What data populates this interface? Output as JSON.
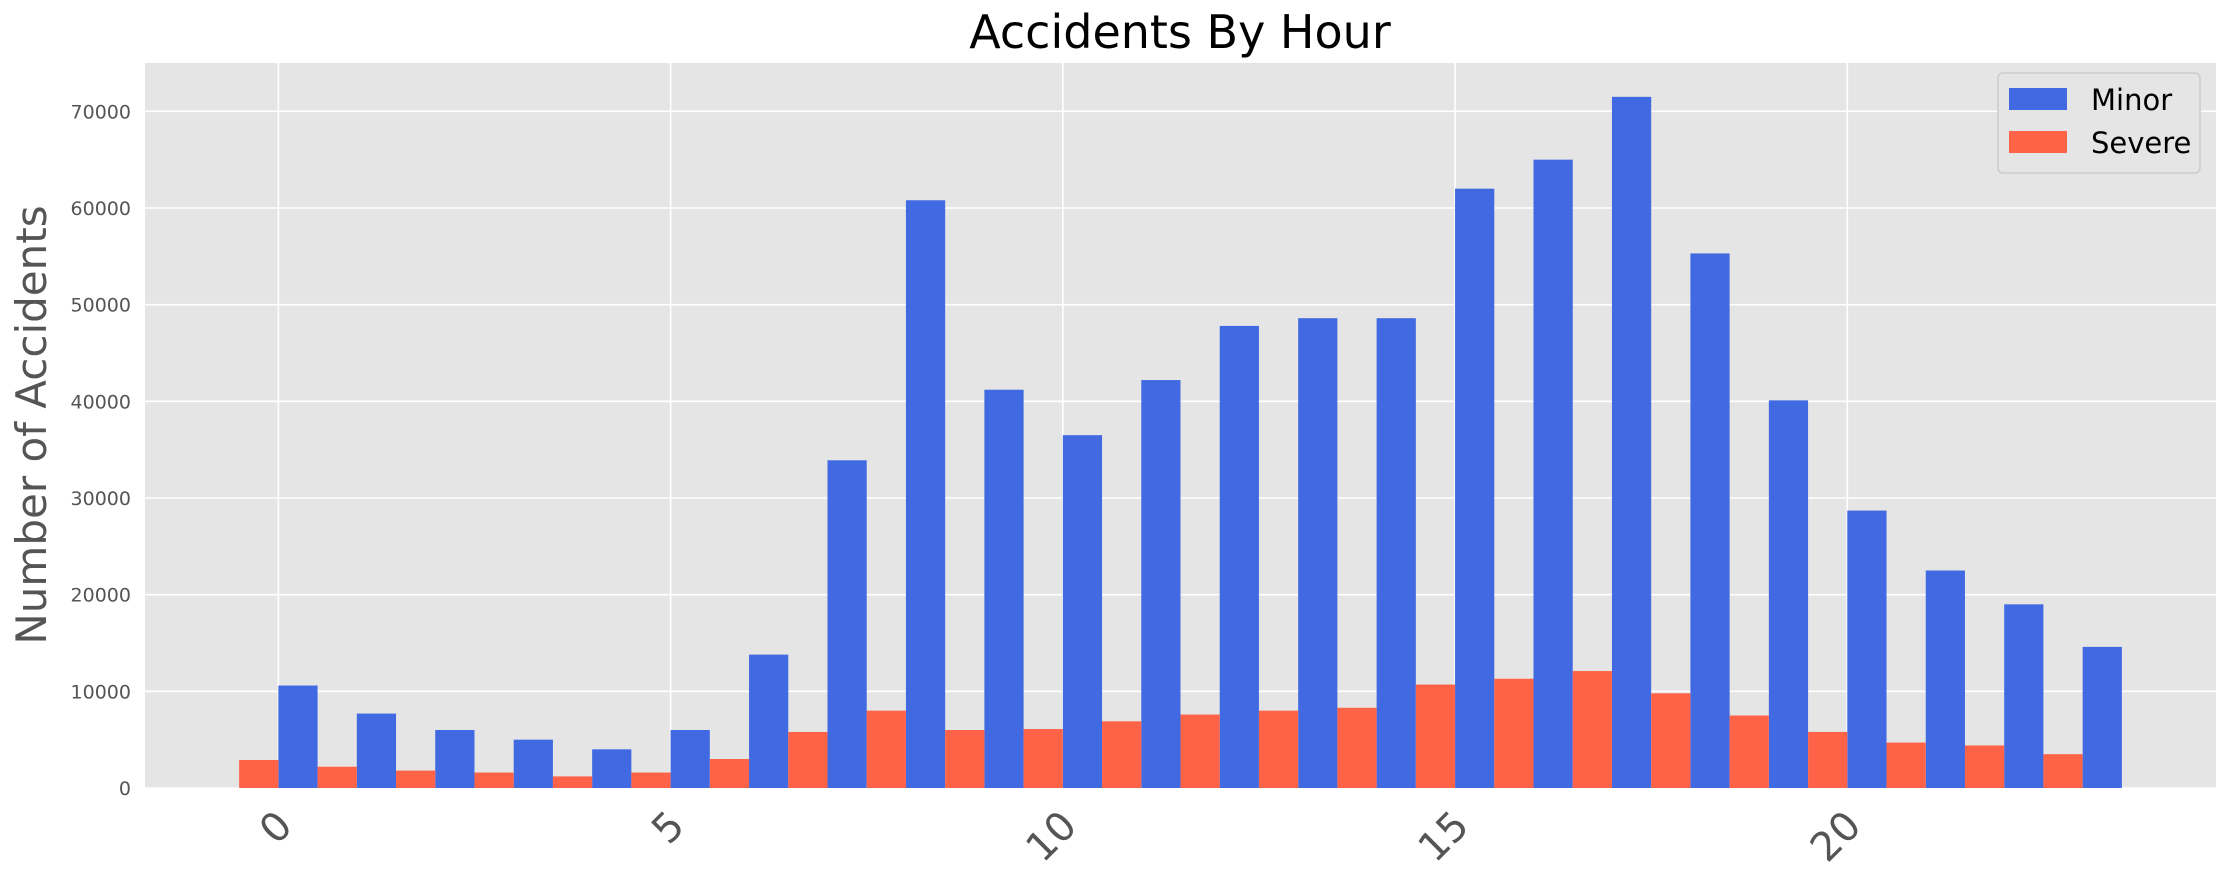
{
  "chart_data": {
    "type": "bar",
    "title": "Accidents By Hour",
    "xlabel": "",
    "ylabel": "Number of Accidents",
    "categories": [
      0,
      1,
      2,
      3,
      4,
      5,
      6,
      7,
      8,
      9,
      10,
      11,
      12,
      13,
      14,
      15,
      16,
      17,
      18,
      19,
      20,
      21,
      22,
      23
    ],
    "x_ticks": [
      0,
      5,
      10,
      15,
      20
    ],
    "y_ticks": [
      0,
      10000,
      20000,
      30000,
      40000,
      50000,
      60000,
      70000
    ],
    "ylim": [
      0,
      75000
    ],
    "xlim": [
      -1.7,
      24.7
    ],
    "grid": true,
    "legend_position": "top-right",
    "series": [
      {
        "name": "Minor",
        "color": "#4169e1",
        "values": [
          10600,
          7700,
          6000,
          5000,
          4000,
          6000,
          13800,
          33900,
          60800,
          41200,
          36500,
          42200,
          47800,
          48600,
          48600,
          62000,
          65000,
          71500,
          55300,
          40100,
          28700,
          22500,
          19000,
          14600
        ]
      },
      {
        "name": "Severe",
        "color": "#ff6347",
        "values": [
          2900,
          2200,
          1800,
          1600,
          1200,
          1600,
          3000,
          5800,
          8000,
          6000,
          6100,
          6900,
          7600,
          8000,
          8300,
          10700,
          11300,
          12100,
          9800,
          7500,
          5800,
          4700,
          4400,
          3500
        ]
      }
    ]
  },
  "colors": {
    "plot_background": "#e5e5e5",
    "grid": "#ffffff",
    "tick_label": "#555555"
  }
}
